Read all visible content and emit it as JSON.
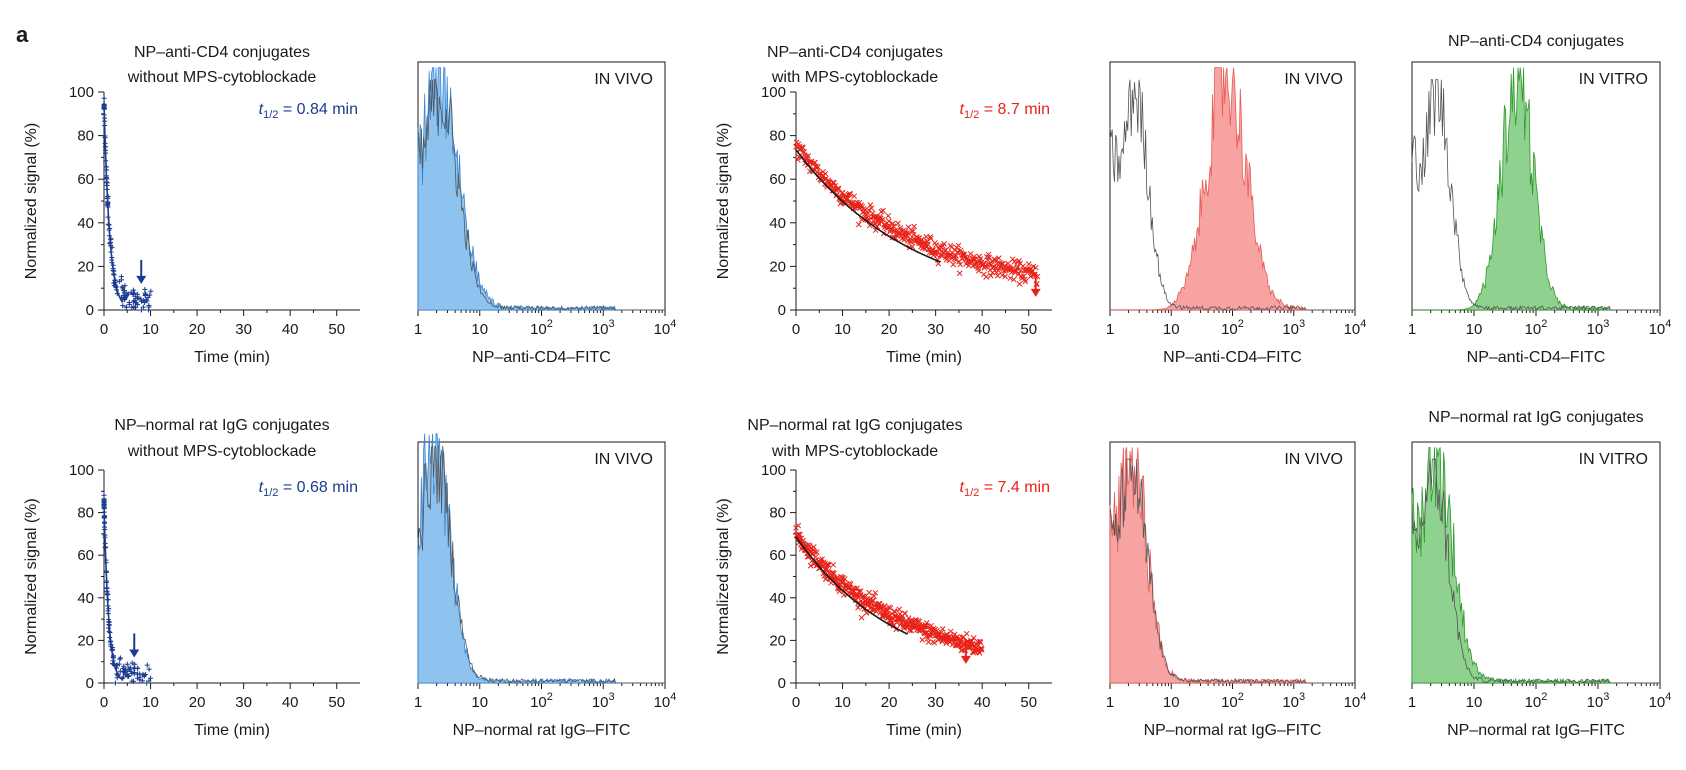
{
  "figure": {
    "panel_label": "a"
  },
  "colors": {
    "blue": "#1a3b8f",
    "blue_fill": "#8ec3f0",
    "blue_line": "#3a86d6",
    "red": "#e8231a",
    "red_fill": "#f6a3a1",
    "red_line": "#e95b57",
    "green": "#33a532",
    "green_fill": "#8fd18e",
    "green_line": "#2f9a2e",
    "black": "#1a1a1a",
    "gray_line": "#555555"
  },
  "chart_data": [
    {
      "id": "r1c1",
      "type": "scatter",
      "color_key": "blue",
      "title": [
        "NP–anti-CD4 conjugates",
        "without MPS-cytoblockade"
      ],
      "xlabel": "Time (min)",
      "ylabel": "Normalized signal (%)",
      "xlim": [
        0,
        55
      ],
      "ylim": [
        0,
        100
      ],
      "xticks": [
        0,
        10,
        20,
        30,
        40,
        50
      ],
      "xtick_labels": [
        "0",
        "10",
        "20",
        "30",
        "40",
        "50"
      ],
      "yticks": [
        0,
        20,
        40,
        60,
        80,
        100
      ],
      "ytick_labels": [
        "0",
        "20",
        "40",
        "60",
        "80",
        "100"
      ],
      "annotation": {
        "prefix": "t",
        "sub": "1/2",
        "text": " = 0.84 min"
      },
      "half_life": 0.84,
      "data_end": 10.5,
      "fit_start": 95,
      "fit_end": 2,
      "arrow_x": 8,
      "arrow_y": 12
    },
    {
      "id": "r1c3",
      "type": "scatter",
      "color_key": "red",
      "title": [
        "NP–anti-CD4 conjugates",
        "with MPS-cytoblockade"
      ],
      "xlabel": "Time (min)",
      "ylabel": "Normalized signal (%)",
      "xlim": [
        0,
        55
      ],
      "ylim": [
        0,
        100
      ],
      "xticks": [
        0,
        10,
        20,
        30,
        40,
        50
      ],
      "xtick_labels": [
        "0",
        "10",
        "20",
        "30",
        "40",
        "50"
      ],
      "yticks": [
        0,
        20,
        40,
        60,
        80,
        100
      ],
      "ytick_labels": [
        "0",
        "20",
        "40",
        "60",
        "80",
        "100"
      ],
      "annotation": {
        "prefix": "t",
        "sub": "1/2",
        "text": " = 8.7 min"
      },
      "half_life": 8.7,
      "data_end": 52,
      "fit_start": 75,
      "fit_end": 31,
      "arrow_x": 51.5,
      "arrow_y": 6
    },
    {
      "id": "r2c1",
      "type": "scatter",
      "color_key": "blue",
      "title": [
        "NP–normal rat IgG conjugates",
        "without MPS-cytoblockade"
      ],
      "xlabel": "Time (min)",
      "ylabel": "Normalized signal (%)",
      "xlim": [
        0,
        55
      ],
      "ylim": [
        0,
        100
      ],
      "xticks": [
        0,
        10,
        20,
        30,
        40,
        50
      ],
      "xtick_labels": [
        "0",
        "10",
        "20",
        "30",
        "40",
        "50"
      ],
      "yticks": [
        0,
        20,
        40,
        60,
        80,
        100
      ],
      "ytick_labels": [
        "0",
        "20",
        "40",
        "60",
        "80",
        "100"
      ],
      "annotation": {
        "prefix": "t",
        "sub": "1/2",
        "text": " = 0.68 min"
      },
      "half_life": 0.68,
      "data_end": 10,
      "fit_start": 85,
      "fit_end": 2,
      "arrow_x": 6.5,
      "arrow_y": 12
    },
    {
      "id": "r2c3",
      "type": "scatter",
      "color_key": "red",
      "title": [
        "NP–normal rat IgG conjugates",
        "with MPS-cytoblockade"
      ],
      "xlabel": "Time (min)",
      "ylabel": "Normalized signal (%)",
      "xlim": [
        0,
        55
      ],
      "ylim": [
        0,
        100
      ],
      "xticks": [
        0,
        10,
        20,
        30,
        40,
        50
      ],
      "xtick_labels": [
        "0",
        "10",
        "20",
        "30",
        "40",
        "50"
      ],
      "yticks": [
        0,
        20,
        40,
        60,
        80,
        100
      ],
      "ytick_labels": [
        "0",
        "20",
        "40",
        "60",
        "80",
        "100"
      ],
      "annotation": {
        "prefix": "t",
        "sub": "1/2",
        "text": " = 7.4 min"
      },
      "half_life": 7.4,
      "data_end": 40,
      "fit_start": 70,
      "fit_end": 24,
      "arrow_x": 36.5,
      "arrow_y": 9
    },
    {
      "id": "r1c2",
      "type": "area",
      "title": [],
      "condition": "IN VIVO",
      "xlabel": "NP–anti-CD4–FITC",
      "xscale": "log",
      "xlim": [
        1,
        10000
      ],
      "xticks": [
        1,
        10,
        100,
        1000,
        10000
      ],
      "xtick_labels": [
        "1",
        "10",
        "10^2",
        "10^3",
        "10^4"
      ],
      "fill_key": "blue_fill",
      "line_key": "blue_line",
      "filled_peak": 2.2,
      "filled_width": 0.32,
      "control_peak": 2.2,
      "control_width": 0.3,
      "height": 0.85
    },
    {
      "id": "r1c4",
      "type": "area",
      "title": [],
      "condition": "IN VIVO",
      "xlabel": "NP–anti-CD4–FITC",
      "xscale": "log",
      "xlim": [
        1,
        10000
      ],
      "xticks": [
        1,
        10,
        100,
        1000,
        10000
      ],
      "xtick_labels": [
        "1",
        "10",
        "10^2",
        "10^3",
        "10^4"
      ],
      "fill_key": "red_fill",
      "line_key": "red_line",
      "filled_peak": 80,
      "filled_width": 0.32,
      "control_peak": 2.5,
      "control_width": 0.22,
      "height": 0.85
    },
    {
      "id": "r1c5",
      "type": "area",
      "title": [
        "NP–anti-CD4 conjugates"
      ],
      "condition": "IN VITRO",
      "xlabel": "NP–anti-CD4–FITC",
      "xscale": "log",
      "xlim": [
        1,
        10000
      ],
      "xticks": [
        1,
        10,
        100,
        1000,
        10000
      ],
      "xtick_labels": [
        "1",
        "10",
        "10^2",
        "10^3",
        "10^4"
      ],
      "fill_key": "green_fill",
      "line_key": "green_line",
      "filled_peak": 50,
      "filled_width": 0.25,
      "control_peak": 2.5,
      "control_width": 0.22,
      "height": 0.85
    },
    {
      "id": "r2c2",
      "type": "area",
      "title": [],
      "condition": "IN VIVO",
      "xlabel": "NP–normal rat IgG–FITC",
      "xscale": "log",
      "xlim": [
        1,
        10000
      ],
      "xticks": [
        1,
        10,
        100,
        1000,
        10000
      ],
      "xtick_labels": [
        "1",
        "10",
        "10^2",
        "10^3",
        "10^4"
      ],
      "fill_key": "blue_fill",
      "line_key": "blue_line",
      "filled_peak": 1.8,
      "filled_width": 0.26,
      "control_peak": 1.9,
      "control_width": 0.26,
      "height": 0.9
    },
    {
      "id": "r2c4",
      "type": "area",
      "title": [],
      "condition": "IN VIVO",
      "xlabel": "NP–normal rat IgG–FITC",
      "xscale": "log",
      "xlim": [
        1,
        10000
      ],
      "xticks": [
        1,
        10,
        100,
        1000,
        10000
      ],
      "xtick_labels": [
        "1",
        "10",
        "10^2",
        "10^3",
        "10^4"
      ],
      "fill_key": "red_fill",
      "line_key": "red_line",
      "filled_peak": 2.2,
      "filled_width": 0.26,
      "control_peak": 2.2,
      "control_width": 0.26,
      "height": 0.85
    },
    {
      "id": "r2c5",
      "type": "area",
      "title": [
        "NP–normal rat IgG conjugates"
      ],
      "condition": "IN VITRO",
      "xlabel": "NP–normal rat IgG–FITC",
      "xscale": "log",
      "xlim": [
        1,
        10000
      ],
      "xticks": [
        1,
        10,
        100,
        1000,
        10000
      ],
      "xtick_labels": [
        "1",
        "10",
        "10^2",
        "10^3",
        "10^4"
      ],
      "fill_key": "green_fill",
      "line_key": "green_line",
      "filled_peak": 2.4,
      "filled_width": 0.28,
      "control_peak": 2.2,
      "control_width": 0.24,
      "height": 0.85
    }
  ]
}
